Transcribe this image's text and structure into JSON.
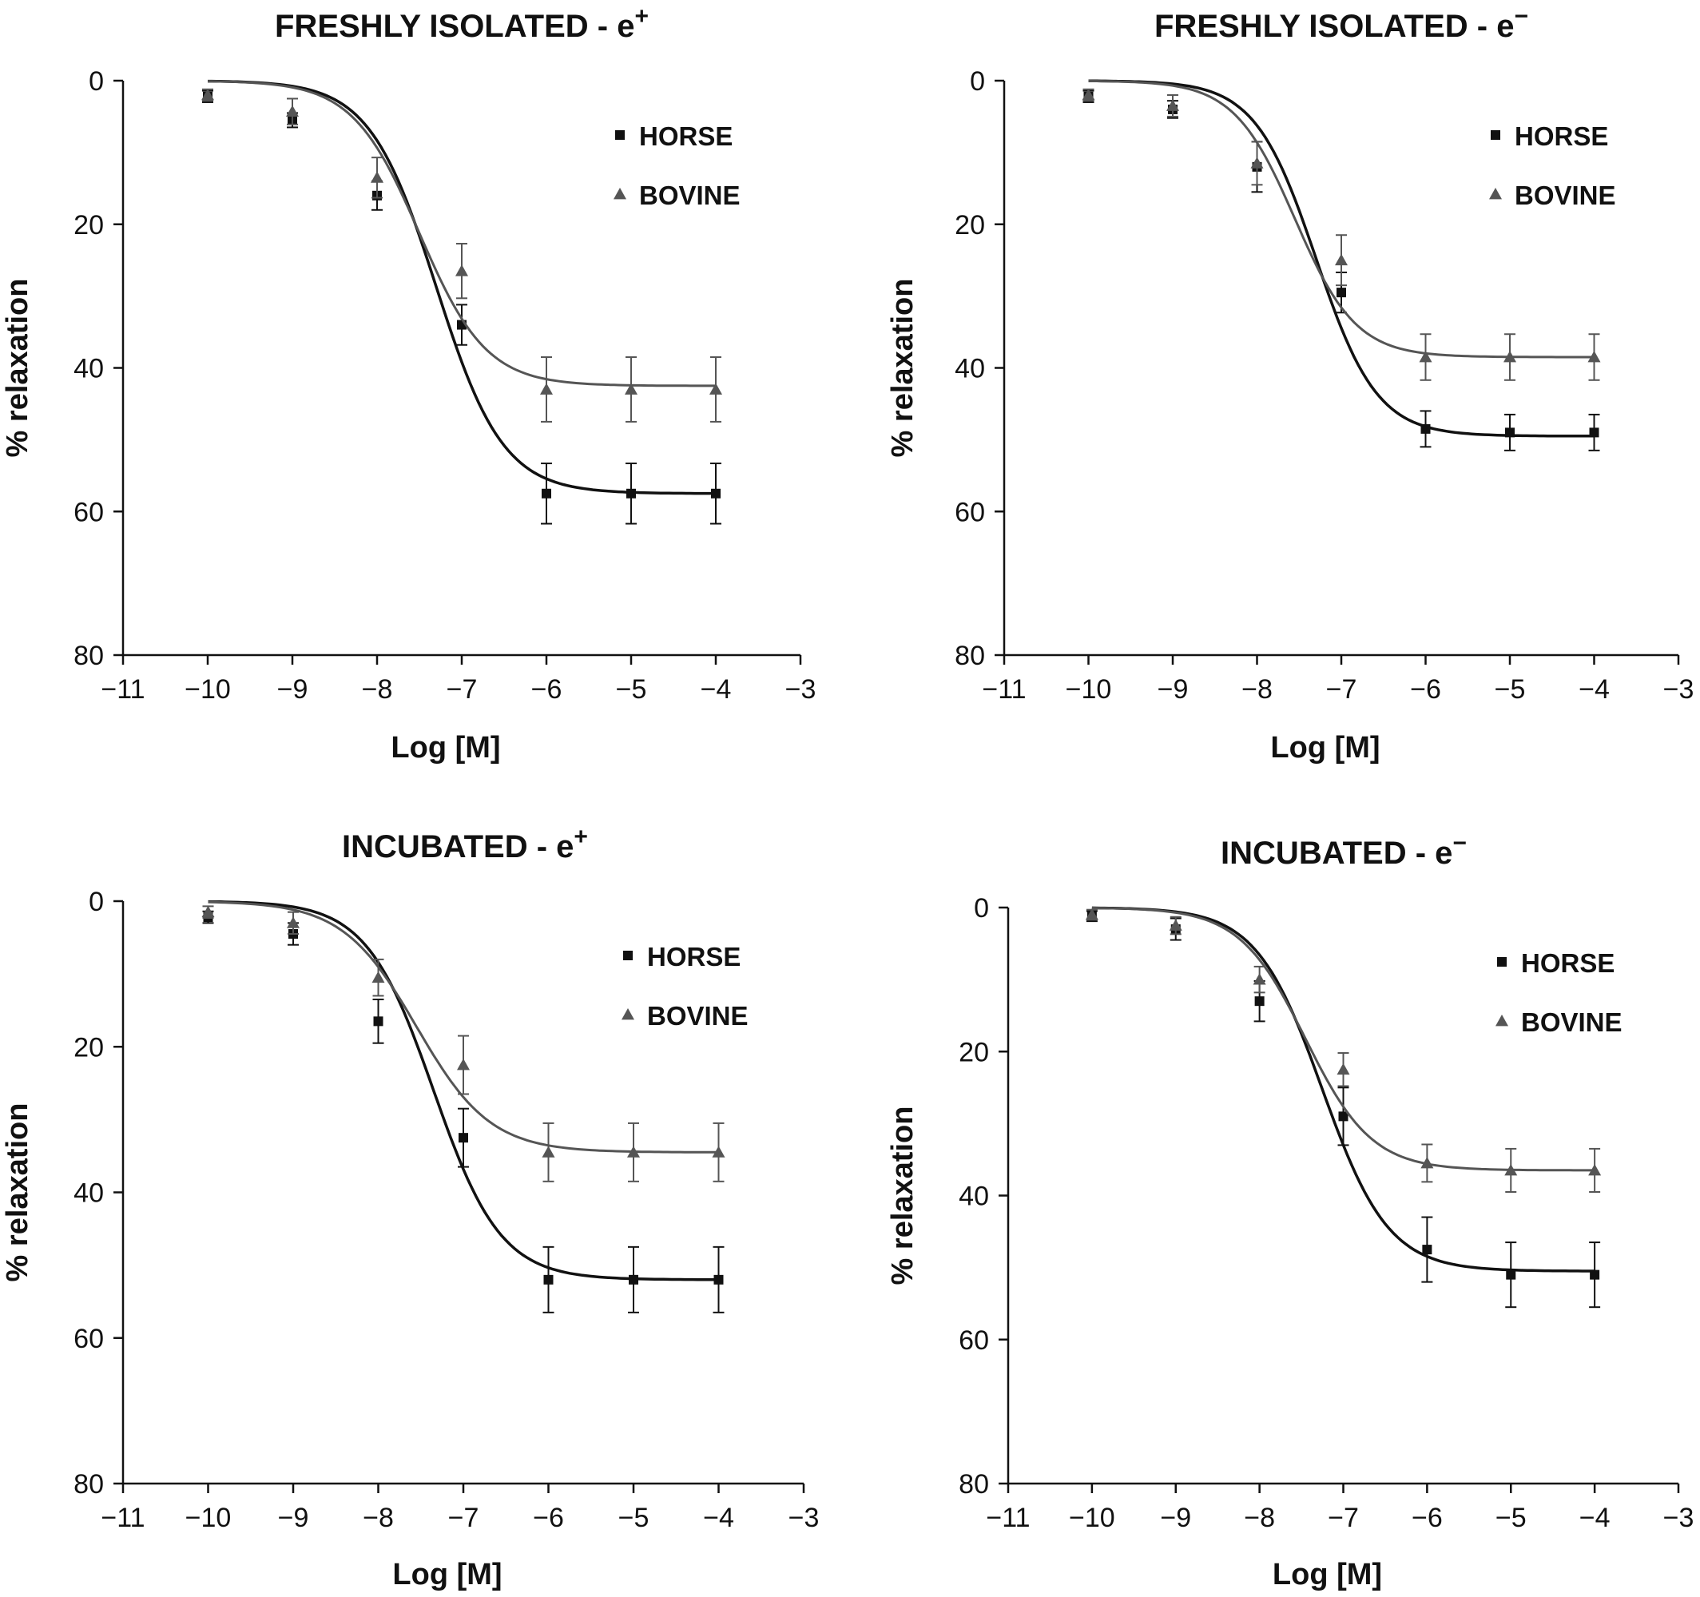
{
  "chart_data": [
    {
      "type": "scatter",
      "title": "FRESHLY ISOLATED - e",
      "title_superscript": "+",
      "xlabel": "Log [M]",
      "ylabel": "% relaxation",
      "xlim": [
        -11,
        -3
      ],
      "ylim": [
        0,
        80
      ],
      "y_inverted": true,
      "xticks": [
        "−11",
        "−10",
        "−9",
        "−8",
        "−7",
        "−6",
        "−5",
        "−4",
        "−3"
      ],
      "yticks": [
        "0",
        "20",
        "40",
        "60",
        "80"
      ],
      "grid": false,
      "legend_position": "top-right",
      "series": [
        {
          "name": "HORSE",
          "marker": "square",
          "color": "#111111",
          "x": [
            -10,
            -9,
            -8,
            -7,
            -6,
            -5,
            -4
          ],
          "y": [
            2.2,
            5.5,
            16,
            34,
            57.5,
            57.5,
            57.5
          ],
          "error": [
            0.8,
            1,
            2,
            2.8,
            4.2,
            4.2,
            4.2
          ],
          "fit": {
            "bottom": 0,
            "top": 57.5,
            "logEC50": -7.3,
            "hill": 1.1
          }
        },
        {
          "name": "BOVINE",
          "marker": "triangle",
          "color": "#555555",
          "x": [
            -10,
            -9,
            -8,
            -7,
            -6,
            -5,
            -4
          ],
          "y": [
            2,
            4.3,
            13.5,
            26.5,
            43,
            43,
            43
          ],
          "error": [
            0.8,
            1.8,
            2.8,
            3.8,
            4.5,
            4.5,
            4.5
          ],
          "fit": {
            "bottom": 0,
            "top": 42.5,
            "logEC50": -7.5,
            "hill": 1.1
          }
        }
      ]
    },
    {
      "type": "scatter",
      "title": "FRESHLY ISOLATED - e",
      "title_superscript": "−",
      "xlabel": "Log [M]",
      "ylabel": "% relaxation",
      "xlim": [
        -11,
        -3
      ],
      "ylim": [
        0,
        80
      ],
      "y_inverted": true,
      "xticks": [
        "−11",
        "−10",
        "−9",
        "−8",
        "−7",
        "−6",
        "−5",
        "−4",
        "−3"
      ],
      "yticks": [
        "0",
        "20",
        "40",
        "60",
        "80"
      ],
      "grid": false,
      "legend_position": "top-right",
      "series": [
        {
          "name": "HORSE",
          "marker": "square",
          "color": "#111111",
          "x": [
            -10,
            -9,
            -8,
            -7,
            -6,
            -5,
            -4
          ],
          "y": [
            2.2,
            4,
            12,
            29.5,
            48.5,
            49,
            49
          ],
          "error": [
            0.8,
            1.2,
            3.5,
            2.8,
            2.5,
            2.5,
            2.5
          ],
          "fit": {
            "bottom": 0,
            "top": 49.5,
            "logEC50": -7.3,
            "hill": 1.2
          }
        },
        {
          "name": "BOVINE",
          "marker": "triangle",
          "color": "#555555",
          "x": [
            -10,
            -9,
            -8,
            -7,
            -6,
            -5,
            -4
          ],
          "y": [
            2,
            3.5,
            11.5,
            25,
            38.5,
            38.5,
            38.5
          ],
          "error": [
            0.8,
            1.5,
            3,
            3.5,
            3.2,
            3.2,
            3.2
          ],
          "fit": {
            "bottom": 0,
            "top": 38.5,
            "logEC50": -7.55,
            "hill": 1.2
          }
        }
      ]
    },
    {
      "type": "scatter",
      "title": "INCUBATED - e",
      "title_superscript": "+",
      "xlabel": "Log [M]",
      "ylabel": "% relaxation",
      "xlim": [
        -11,
        -3
      ],
      "ylim": [
        0,
        80
      ],
      "y_inverted": true,
      "xticks": [
        "−11",
        "−10",
        "−9",
        "−8",
        "−7",
        "−6",
        "−5",
        "−4",
        "−3"
      ],
      "yticks": [
        "0",
        "20",
        "40",
        "60",
        "80"
      ],
      "grid": false,
      "legend_position": "top-right",
      "series": [
        {
          "name": "HORSE",
          "marker": "square",
          "color": "#111111",
          "x": [
            -10,
            -9,
            -8,
            -7,
            -6,
            -5,
            -4
          ],
          "y": [
            2.2,
            4.5,
            16.5,
            32.5,
            52,
            52,
            52
          ],
          "error": [
            0.8,
            1.5,
            3,
            4,
            4.5,
            4.5,
            4.5
          ],
          "fit": {
            "bottom": 0,
            "top": 52,
            "logEC50": -7.35,
            "hill": 1.1
          }
        },
        {
          "name": "BOVINE",
          "marker": "triangle",
          "color": "#555555",
          "x": [
            -10,
            -9,
            -8,
            -7,
            -6,
            -5,
            -4
          ],
          "y": [
            1.5,
            3,
            10.5,
            22.5,
            34.5,
            34.5,
            34.5
          ],
          "error": [
            0.8,
            1.5,
            2.5,
            4,
            4,
            4,
            4
          ],
          "fit": {
            "bottom": 0,
            "top": 34.5,
            "logEC50": -7.55,
            "hill": 1
          }
        }
      ]
    },
    {
      "type": "scatter",
      "title": "INCUBATED - e",
      "title_superscript": "−",
      "xlabel": "Log [M]",
      "ylabel": "% relaxation",
      "xlim": [
        -11,
        -3
      ],
      "ylim": [
        0,
        80
      ],
      "y_inverted": true,
      "xticks": [
        "−11",
        "−10",
        "−9",
        "−8",
        "−7",
        "−6",
        "−5",
        "−4",
        "−3"
      ],
      "yticks": [
        "0",
        "20",
        "40",
        "60",
        "80"
      ],
      "grid": false,
      "legend_position": "top-right",
      "series": [
        {
          "name": "HORSE",
          "marker": "square",
          "color": "#111111",
          "x": [
            -10,
            -9,
            -8,
            -7,
            -6,
            -5,
            -4
          ],
          "y": [
            1.2,
            3,
            13,
            29,
            47.5,
            51,
            51
          ],
          "error": [
            0.7,
            1.5,
            2.8,
            4,
            4.5,
            4.5,
            4.5
          ],
          "fit": {
            "bottom": 0,
            "top": 50.5,
            "logEC50": -7.25,
            "hill": 1.1
          }
        },
        {
          "name": "BOVINE",
          "marker": "triangle",
          "color": "#555555",
          "x": [
            -10,
            -9,
            -8,
            -7,
            -6,
            -5,
            -4
          ],
          "y": [
            1,
            2.5,
            10,
            22.5,
            35.5,
            36.5,
            36.5
          ],
          "error": [
            0.7,
            1.2,
            1.8,
            2.3,
            2.6,
            3,
            3
          ],
          "fit": {
            "bottom": 0,
            "top": 36.5,
            "logEC50": -7.45,
            "hill": 1.1
          }
        }
      ]
    }
  ]
}
